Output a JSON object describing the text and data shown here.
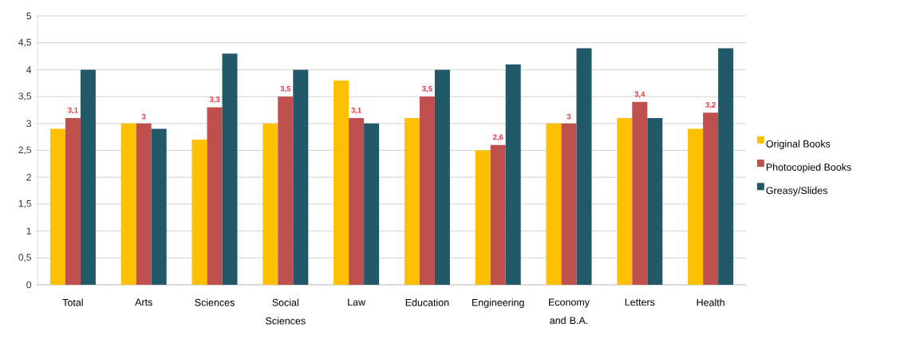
{
  "chart_data": {
    "type": "bar",
    "categories": [
      "Total",
      "Arts",
      "Sciences",
      "Social Sciences",
      "Law",
      "Education",
      "Engineering",
      "Economy and B.A.",
      "Letters",
      "Health"
    ],
    "series": [
      {
        "name": "Original Books",
        "color": "#ffc000",
        "values": [
          2.9,
          3.0,
          2.7,
          3.0,
          3.8,
          3.1,
          2.5,
          3.0,
          3.1,
          2.9
        ]
      },
      {
        "name": "Photocopied Books",
        "color": "#c0504d",
        "values": [
          3.1,
          3.0,
          3.3,
          3.5,
          3.1,
          3.5,
          2.6,
          3.0,
          3.4,
          3.2
        ],
        "value_labels": [
          "3,1",
          "3",
          "3,3",
          "3,5",
          "3,1",
          "3,5",
          "2,6",
          "3",
          "3,4",
          "3,2"
        ]
      },
      {
        "name": "Greasy/Slides",
        "color": "#215968",
        "values": [
          4.0,
          2.9,
          4.3,
          4.0,
          3.0,
          4.0,
          4.1,
          4.4,
          3.1,
          4.4
        ]
      }
    ],
    "ylim": [
      0,
      5
    ],
    "yticks": [
      0,
      {
        "value": 0.5,
        "label": "0,5"
      },
      1,
      {
        "value": 1.5,
        "label": "1,5"
      },
      2,
      {
        "value": 2.5,
        "label": "2,5"
      },
      3,
      {
        "value": 3.5,
        "label": "3,5"
      },
      4,
      {
        "value": 4.5,
        "label": "4,5"
      },
      5
    ],
    "grid": "y",
    "legend": "right"
  }
}
